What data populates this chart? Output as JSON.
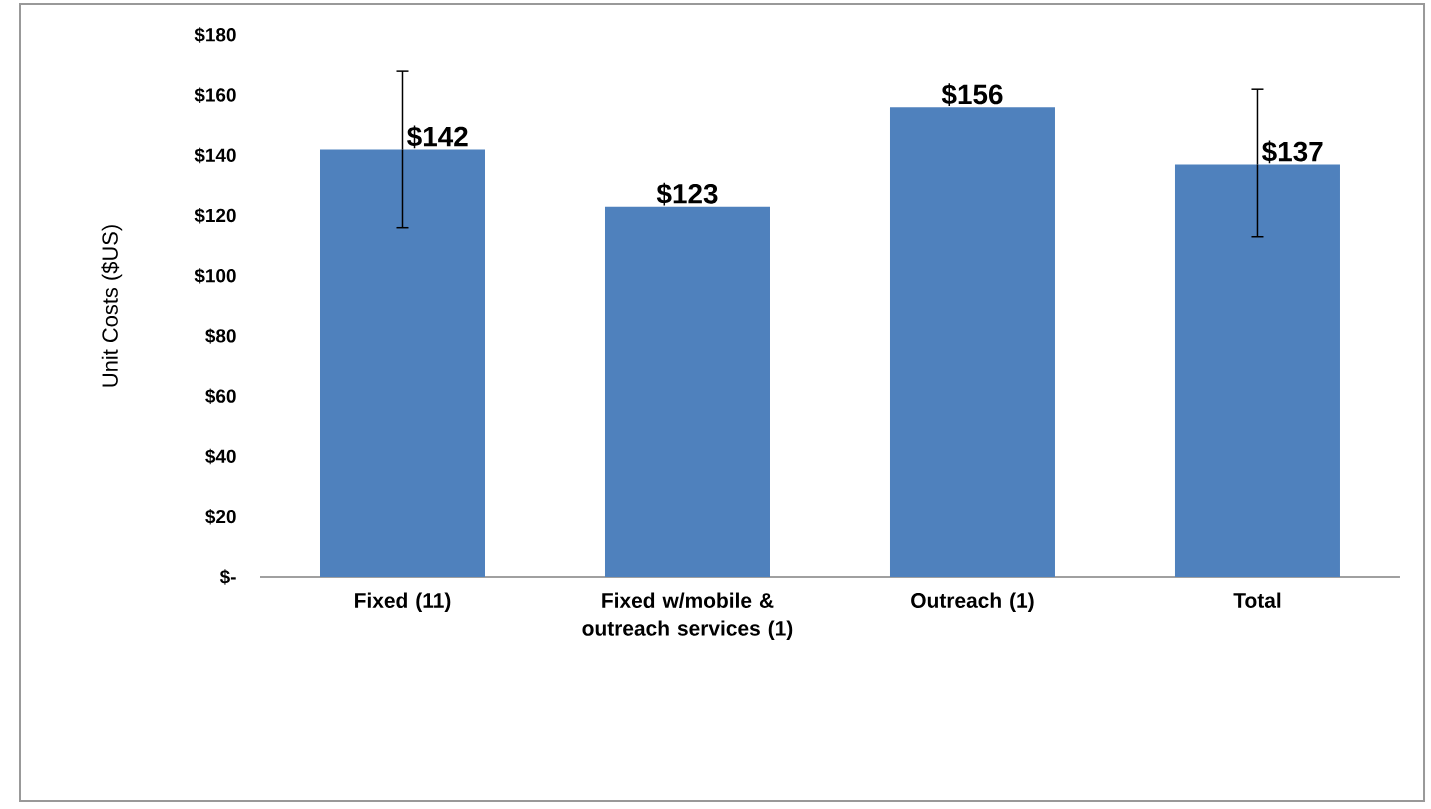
{
  "chart_data": {
    "type": "bar",
    "ylabel": "Unit Costs ($US)",
    "categories": [
      "Fixed (11)",
      "Fixed w/mobile & outreach services (1)",
      "Outreach (1)",
      "Total"
    ],
    "values": [
      142,
      123,
      156,
      137
    ],
    "value_labels": [
      "$142",
      "$123",
      "$156",
      "$137"
    ],
    "errors": [
      [
        116,
        168
      ],
      null,
      null,
      [
        113,
        162
      ]
    ],
    "color": "#4f81bd",
    "ylim": [
      0,
      180
    ],
    "yticks": [
      {
        "value": 0,
        "label": "$-"
      },
      {
        "value": 20,
        "label": "$20"
      },
      {
        "value": 40,
        "label": "$40"
      },
      {
        "value": 60,
        "label": "$60"
      },
      {
        "value": 80,
        "label": "$80"
      },
      {
        "value": 100,
        "label": "$100"
      },
      {
        "value": 120,
        "label": "$120"
      },
      {
        "value": 140,
        "label": "$140"
      },
      {
        "value": 160,
        "label": "$160"
      },
      {
        "value": 180,
        "label": "$180"
      }
    ]
  }
}
